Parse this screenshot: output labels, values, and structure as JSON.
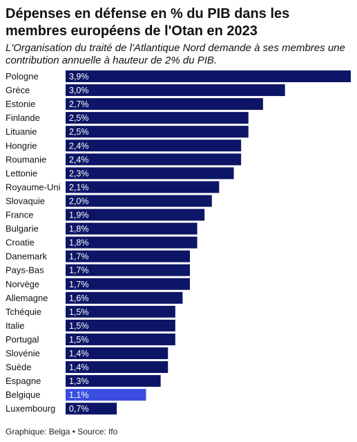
{
  "header": {
    "title": "Dépenses en défense en % du PIB dans les membres européens de l'Otan en 2023",
    "subtitle": "L'Organisation du traité de l'Atlantique Nord demande à ses membres une contribution annuelle à hauteur de 2% du PIB."
  },
  "footer": {
    "source": "Graphique: Belga • Source: Ifo"
  },
  "colors": {
    "bar": "#0d1566",
    "highlight": "#3b4ee0",
    "text": "#111111"
  },
  "chart_data": {
    "type": "bar",
    "orientation": "horizontal",
    "title": "Dépenses en défense en % du PIB dans les membres européens de l'Otan en 2023",
    "categories": [
      "Pologne",
      "Grèce",
      "Estonie",
      "Finlande",
      "Lituanie",
      "Hongrie",
      "Roumanie",
      "Lettonie",
      "Royaume-Uni",
      "Slovaquie",
      "France",
      "Bulgarie",
      "Croatie",
      "Danemark",
      "Pays-Bas",
      "Norvège",
      "Allemagne",
      "Tchéquie",
      "Italie",
      "Portugal",
      "Slovénie",
      "Suède",
      "Espagne",
      "Belgique",
      "Luxembourg"
    ],
    "values": [
      3.9,
      3.0,
      2.7,
      2.5,
      2.5,
      2.4,
      2.4,
      2.3,
      2.1,
      2.0,
      1.9,
      1.8,
      1.8,
      1.7,
      1.7,
      1.7,
      1.6,
      1.5,
      1.5,
      1.5,
      1.4,
      1.4,
      1.3,
      1.1,
      0.7
    ],
    "value_labels": [
      "3,9%",
      "3,0%",
      "2,7%",
      "2,5%",
      "2,5%",
      "2,4%",
      "2,4%",
      "2,3%",
      "2,1%",
      "2,0%",
      "1,9%",
      "1,8%",
      "1,8%",
      "1,7%",
      "1,7%",
      "1,7%",
      "1,6%",
      "1,5%",
      "1,5%",
      "1,5%",
      "1,4%",
      "1,4%",
      "1,3%",
      "1,1%",
      "0,7%"
    ],
    "highlight": "Belgique",
    "xlim": [
      0,
      3.9
    ],
    "grid": false,
    "legend": "none"
  }
}
